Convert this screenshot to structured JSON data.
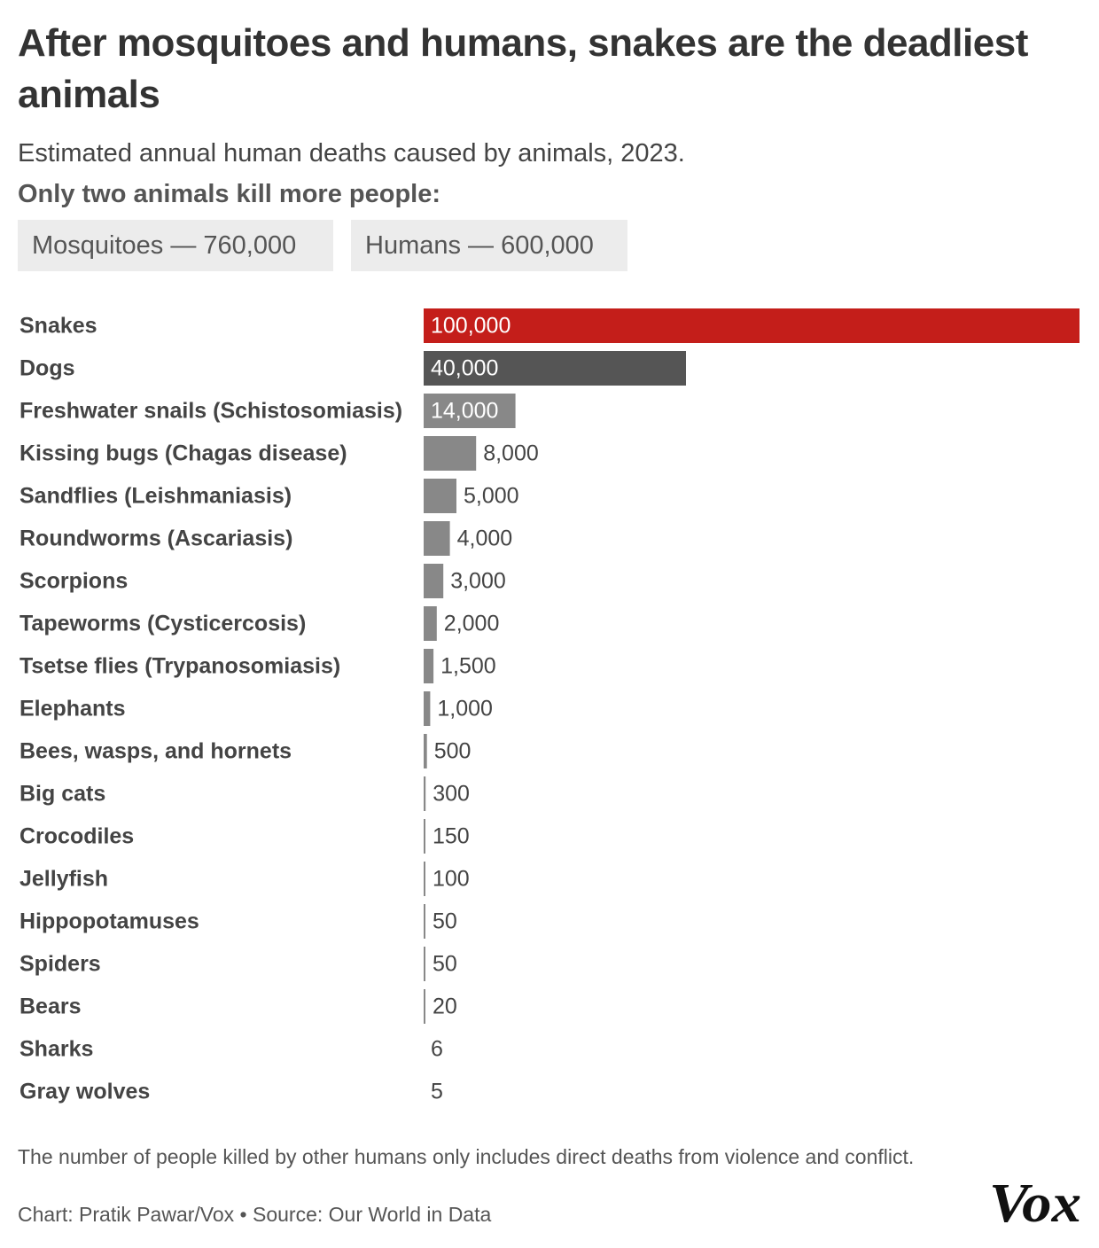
{
  "title": "After mosquitoes and humans, snakes are the deadliest animals",
  "subtitle": "Estimated annual human deaths caused by animals, 2023.",
  "callout_heading": "Only two animals kill more people:",
  "callouts": [
    "Mosquitoes — 760,000",
    "Humans — 600,000"
  ],
  "footnote": "The number of people killed by other humans only includes direct deaths from violence and conflict.",
  "credit": "Chart: Pratik Pawar/Vox • Source: Our World in Data",
  "logo_text": "Vox",
  "colors": {
    "highlight": "#c41e1a",
    "dogs": "#555555",
    "default": "#888888",
    "label_inside": "#ffffff",
    "label_outside": "#444444"
  },
  "chart_data": {
    "type": "bar",
    "orientation": "horizontal",
    "categories": [
      "Snakes",
      "Dogs",
      "Freshwater snails (Schistosomiasis)",
      "Kissing bugs (Chagas disease)",
      "Sandflies (Leishmaniasis)",
      "Roundworms (Ascariasis)",
      "Scorpions",
      "Tapeworms (Cysticercosis)",
      "Tsetse flies (Trypanosomiasis)",
      "Elephants",
      "Bees, wasps, and hornets",
      "Big cats",
      "Crocodiles",
      "Jellyfish",
      "Hippopotamuses",
      "Spiders",
      "Bears",
      "Sharks",
      "Gray wolves"
    ],
    "values": [
      100000,
      40000,
      14000,
      8000,
      5000,
      4000,
      3000,
      2000,
      1500,
      1000,
      500,
      300,
      150,
      100,
      50,
      50,
      20,
      6,
      5
    ],
    "value_labels": [
      "100,000",
      "40,000",
      "14,000",
      "8,000",
      "5,000",
      "4,000",
      "3,000",
      "2,000",
      "1,500",
      "1,000",
      "500",
      "300",
      "150",
      "100",
      "50",
      "50",
      "20",
      "6",
      "5"
    ],
    "xlim": [
      0,
      100000
    ],
    "grid": false,
    "legend": "none"
  }
}
